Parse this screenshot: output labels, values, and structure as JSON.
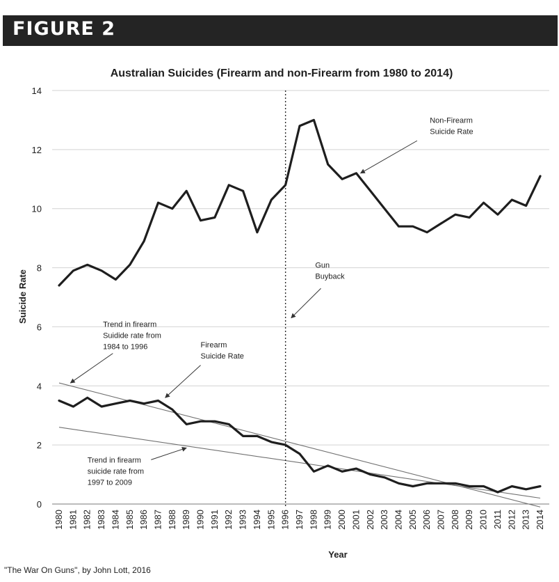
{
  "banner": {
    "label": "FIGURE 2",
    "color": "#242424"
  },
  "source_note": "\"The War On Guns\", by John Lott, 2016",
  "chart_data": {
    "type": "line",
    "title": "Australian Suicides (Firearm and non-Firearm from 1980 to 2014)",
    "xlabel": "Year",
    "ylabel": "Suicide Rate",
    "ylim": [
      0,
      14
    ],
    "yticks": [
      0,
      2,
      4,
      6,
      8,
      10,
      12,
      14
    ],
    "grid": true,
    "x": [
      1980,
      1981,
      1982,
      1983,
      1984,
      1985,
      1986,
      1987,
      1988,
      1989,
      1990,
      1991,
      1992,
      1993,
      1994,
      1995,
      1996,
      1997,
      1998,
      1999,
      2000,
      2001,
      2002,
      2003,
      2004,
      2005,
      2006,
      2007,
      2008,
      2009,
      2010,
      2011,
      2012,
      2013,
      2014
    ],
    "series": [
      {
        "name": "Non-Firearm Suicide Rate",
        "color": "#1e1e1e",
        "values": [
          7.4,
          7.9,
          8.1,
          7.9,
          7.6,
          8.1,
          8.9,
          10.2,
          10.0,
          10.6,
          9.6,
          9.7,
          10.8,
          10.6,
          9.2,
          10.3,
          10.8,
          12.8,
          13.0,
          11.5,
          11.0,
          11.2,
          10.6,
          10.0,
          9.4,
          9.4,
          9.2,
          9.5,
          9.8,
          9.7,
          10.2,
          9.8,
          10.3,
          10.1,
          11.1
        ]
      },
      {
        "name": "Firearm Suicide Rate",
        "color": "#1e1e1e",
        "values": [
          3.5,
          3.3,
          3.6,
          3.3,
          3.4,
          3.5,
          3.4,
          3.5,
          3.2,
          2.7,
          2.8,
          2.8,
          2.7,
          2.3,
          2.3,
          2.1,
          2.0,
          1.7,
          1.1,
          1.3,
          1.1,
          1.2,
          1.0,
          0.9,
          0.7,
          0.6,
          0.7,
          0.7,
          0.7,
          0.6,
          0.6,
          0.4,
          0.6,
          0.5,
          0.6
        ]
      }
    ],
    "trends": [
      {
        "name": "Trend in firearm suicide rate from 1984 to 1996",
        "from": [
          1980,
          4.1
        ],
        "to": [
          2014,
          -0.1
        ]
      },
      {
        "name": "Trend in firearm suicide rate from 1997 to 2009",
        "from": [
          1980,
          2.6
        ],
        "to": [
          2014,
          0.2
        ]
      }
    ],
    "event": {
      "year": 1996,
      "label": [
        "Gun",
        "Buyback"
      ]
    },
    "annotations": [
      {
        "id": "nonfirearm",
        "lines": [
          "Non-Firearm",
          "Suicide Rate"
        ],
        "text_at": [
          2006.2,
          12.9
        ],
        "arrow_from": [
          2005.3,
          12.3
        ],
        "arrow_to": [
          2001.3,
          11.2
        ]
      },
      {
        "id": "gun-buyback",
        "lines": [
          "Gun",
          "Buyback"
        ],
        "text_at": [
          1998.1,
          8.0
        ],
        "arrow_from": [
          1998.5,
          7.3
        ],
        "arrow_to": [
          1996.4,
          6.3
        ]
      },
      {
        "id": "firearm",
        "lines": [
          "Firearm",
          "Suicide Rate"
        ],
        "text_at": [
          1990.0,
          5.3
        ],
        "arrow_from": [
          1990.0,
          4.7
        ],
        "arrow_to": [
          1987.5,
          3.6
        ]
      },
      {
        "id": "trend-1984-1996",
        "lines": [
          "Trend in firearm",
          "Suidide rate from",
          "1984 to 1996"
        ],
        "text_at": [
          1983.1,
          6.0
        ],
        "arrow_from": [
          1983.8,
          5.1
        ],
        "arrow_to": [
          1980.8,
          4.1
        ]
      },
      {
        "id": "trend-1997-2009",
        "lines": [
          "Trend in firearm",
          "suicide rate from",
          "1997 to 2009"
        ],
        "text_at": [
          1982.0,
          1.4
        ],
        "arrow_from": [
          1986.5,
          1.5
        ],
        "arrow_to": [
          1989.0,
          1.9
        ]
      }
    ]
  }
}
